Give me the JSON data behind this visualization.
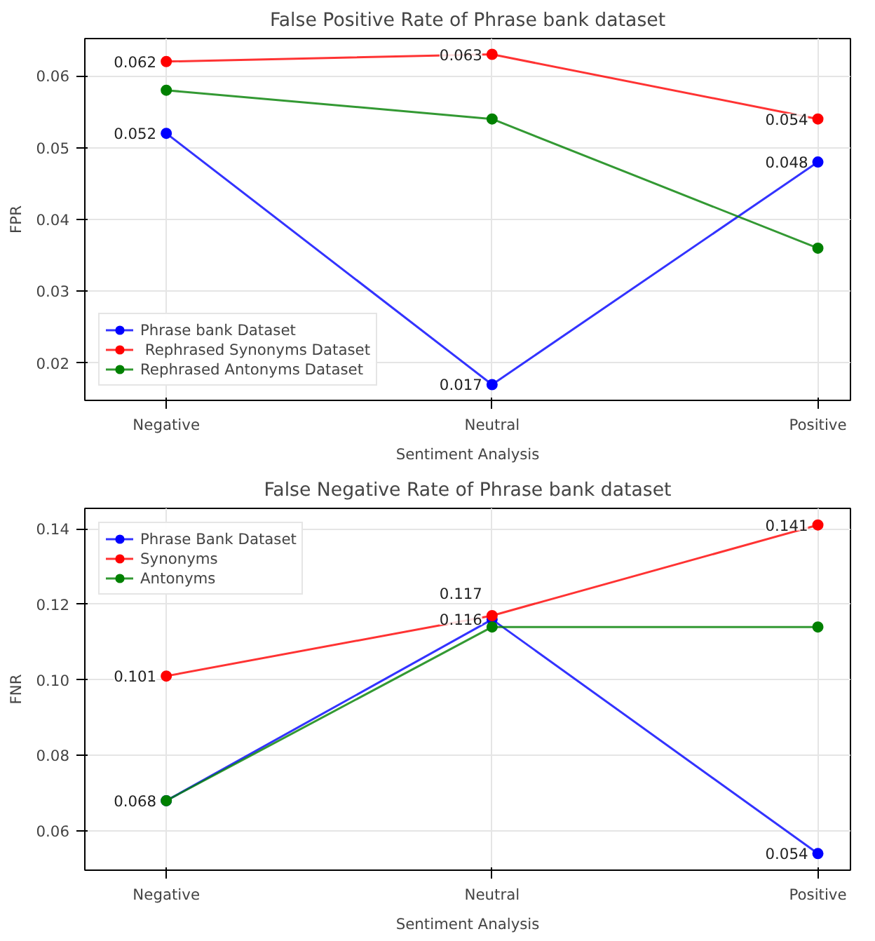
{
  "chart_data": [
    {
      "type": "line",
      "title": "False Positive Rate of Phrase bank dataset",
      "xlabel": "Sentiment Analysis",
      "ylabel": "FPR",
      "categories": [
        "Negative",
        "Neutral",
        "Positive"
      ],
      "series": [
        {
          "name": "Phrase bank Dataset",
          "color": "#0000ff",
          "values": [
            0.052,
            0.017,
            0.048
          ],
          "value_labels": [
            "0.052",
            "0.017",
            "0.048"
          ]
        },
        {
          "name": " Rephrased Synonyms Dataset",
          "color": "#ff0000",
          "values": [
            0.062,
            0.063,
            0.054
          ],
          "value_labels": [
            "0.062",
            "0.063",
            "0.054"
          ]
        },
        {
          "name": "Rephrased Antonyms Dataset",
          "color": "#008000",
          "values": [
            0.058,
            0.054,
            0.036
          ]
        }
      ],
      "ylim": [
        0.0148,
        0.0652
      ],
      "yticks": [
        {
          "value": 0.02,
          "label": "0.02"
        },
        {
          "value": 0.03,
          "label": "0.03"
        },
        {
          "value": 0.04,
          "label": "0.04"
        },
        {
          "value": 0.05,
          "label": "0.05"
        },
        {
          "value": 0.06,
          "label": "0.06"
        }
      ],
      "grid": true,
      "legend": "bottom left",
      "marker": "circle",
      "line_style": "solid"
    },
    {
      "type": "line",
      "title": "False Negative Rate of Phrase bank dataset",
      "xlabel": "Sentiment Analysis",
      "ylabel": "FNR",
      "categories": [
        "Negative",
        "Neutral",
        "Positive"
      ],
      "series": [
        {
          "name": "Phrase Bank Dataset",
          "color": "#0000ff",
          "values": [
            0.068,
            0.116,
            0.054
          ],
          "value_labels": [
            "0.068",
            "0.116",
            "0.054"
          ]
        },
        {
          "name": "Synonyms",
          "color": "#ff0000",
          "values": [
            0.101,
            0.117,
            0.141
          ],
          "value_labels": [
            "0.101",
            "0.117",
            "0.141"
          ]
        },
        {
          "name": "Antonyms",
          "color": "#008000",
          "values": [
            0.068,
            0.114,
            0.114
          ]
        }
      ],
      "ylim": [
        0.0496,
        0.1454
      ],
      "yticks": [
        {
          "value": 0.06,
          "label": "0.06"
        },
        {
          "value": 0.08,
          "label": "0.08"
        },
        {
          "value": 0.1,
          "label": "0.10"
        },
        {
          "value": 0.12,
          "label": "0.12"
        },
        {
          "value": 0.14,
          "label": "0.14"
        }
      ],
      "grid": true,
      "legend": "top left",
      "marker": "circle",
      "line_style": "solid"
    }
  ]
}
